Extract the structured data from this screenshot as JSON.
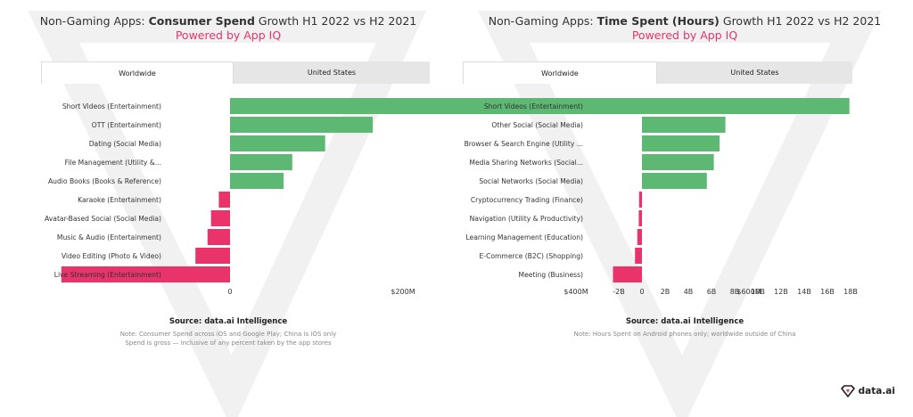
{
  "colors": {
    "positive": "#5cb872",
    "negative": "#e8336b",
    "accent": "#e8336b"
  },
  "charts": [
    {
      "title_prefix": "Non-Gaming Apps: ",
      "title_bold": "Consumer Spend",
      "title_suffix": " Growth H1 2022 vs H2 2021",
      "subtitle": "Powered by App IQ",
      "tabs": [
        {
          "label": "Worldwide",
          "active": true
        },
        {
          "label": "United States",
          "active": false
        }
      ],
      "source": "Source: data.ai Intelligence",
      "notes": [
        "Note: Consumer Spend across iOS and Google Play; China is iOS only",
        "Spend is gross — inclusive of any percent taken by the app stores"
      ]
    },
    {
      "title_prefix": "Non-Gaming Apps: ",
      "title_bold": "Time Spent (Hours)",
      "title_suffix": " Growth H1 2022 vs H2 2021",
      "subtitle": "Powered by App IQ",
      "tabs": [
        {
          "label": "Worldwide",
          "active": true
        },
        {
          "label": "United States",
          "active": false
        }
      ],
      "source": "Source: data.ai Intelligence",
      "notes": [
        "Note: Hours Spent on Android phones only; worldwide outside of China"
      ]
    }
  ],
  "chart_data": [
    {
      "type": "bar",
      "orientation": "horizontal",
      "title": "Non-Gaming Apps: Consumer Spend Growth H1 2022 vs H2 2021",
      "categories": [
        "Short Videos (Entertainment)",
        "OTT (Entertainment)",
        "Dating (Social Media)",
        "File Management (Utility &...",
        "Audio Books (Books & Reference)",
        "Karaoke (Entertainment)",
        "Avatar-Based Social (Social Media)",
        "Music & Audio (Entertainment)",
        "Video Editing (Photo & Video)",
        "Live Streaming (Entertainment)"
      ],
      "values": [
        605000000,
        165000000,
        110000000,
        72000000,
        62000000,
        -13000000,
        -22000000,
        -26000000,
        -40000000,
        -195000000
      ],
      "xlim": [
        -200000000,
        650000000
      ],
      "ticks": [
        0,
        200000000,
        400000000,
        600000000
      ],
      "tick_labels": [
        "0",
        "$200M",
        "$400M",
        "$600M"
      ]
    },
    {
      "type": "bar",
      "orientation": "horizontal",
      "title": "Non-Gaming Apps: Time Spent (Hours) Growth H1 2022 vs H2 2021",
      "categories": [
        "Short Videos (Entertainment)",
        "Other Social (Social Media)",
        "Browser & Search Engine (Utility ...",
        "Media Sharing Networks (Social...",
        "Social Networks (Social Media)",
        "Cryptocurrency Trading (Finance)",
        "Navigation (Utility & Productivity)",
        "Learning Management (Education)",
        "E-Commerce (B2C) (Shopping)",
        "Meeting (Business)"
      ],
      "values": [
        17900000000,
        7200000000,
        6700000000,
        6200000000,
        5600000000,
        -250000000,
        -280000000,
        -400000000,
        -600000000,
        -2500000000
      ],
      "xlim": [
        -2800000000,
        18500000000
      ],
      "ticks": [
        -2000000000,
        0,
        2000000000,
        4000000000,
        6000000000,
        8000000000,
        10000000000,
        12000000000,
        14000000000,
        16000000000,
        18000000000
      ],
      "tick_labels": [
        "-2B",
        "0",
        "2B",
        "4B",
        "6B",
        "8B",
        "10B",
        "12B",
        "14B",
        "16B",
        "18B"
      ]
    }
  ],
  "brand": {
    "name": "data.ai",
    "logo": "diamond-logo-icon"
  }
}
